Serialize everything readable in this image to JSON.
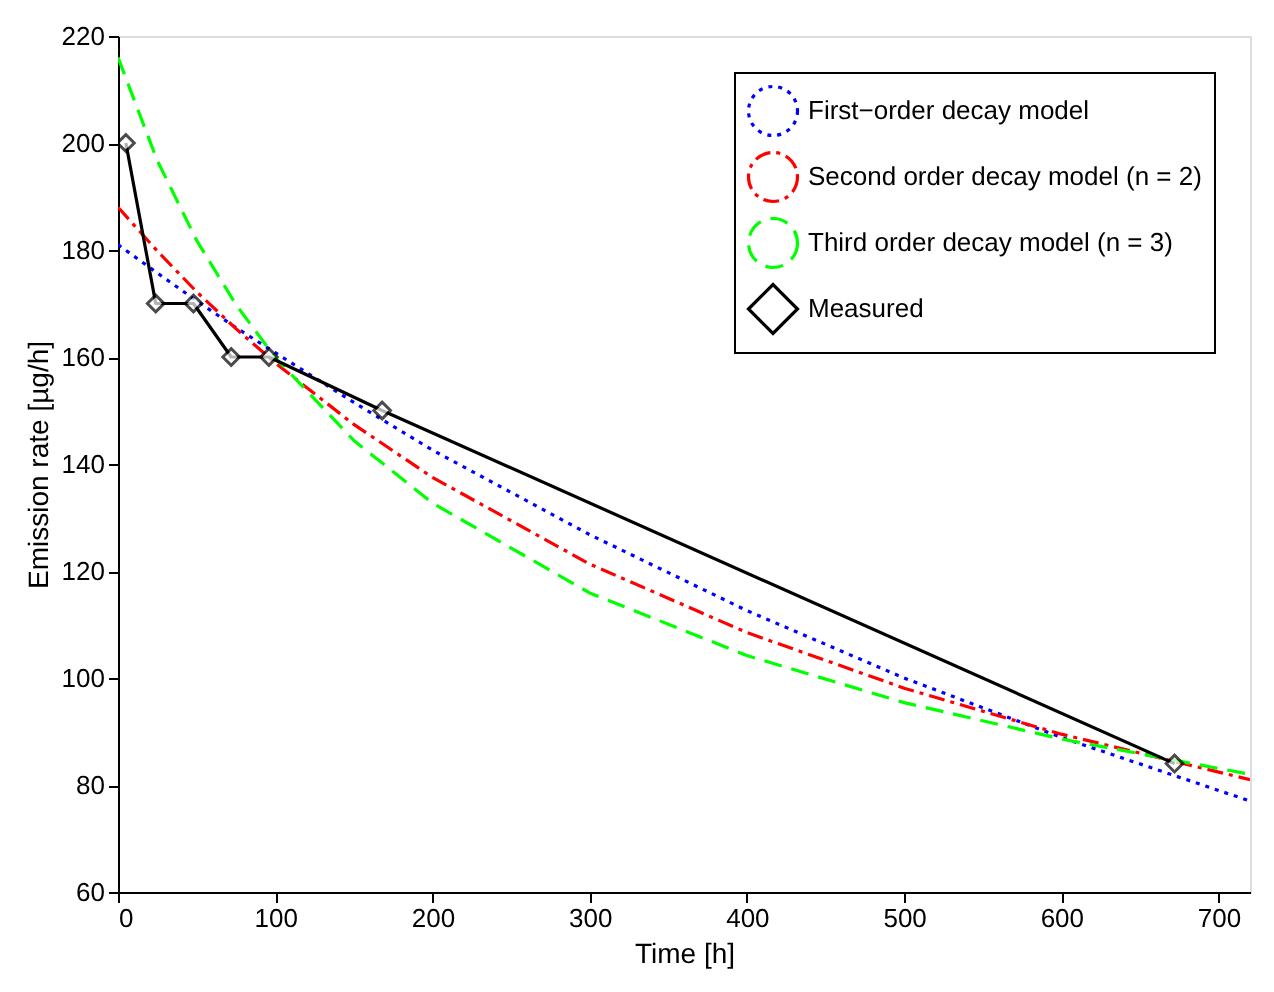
{
  "chart_data": {
    "type": "line",
    "xlabel": "Time [h]",
    "ylabel": "Emission rate [µg/h]",
    "xlim": [
      0,
      720
    ],
    "ylim": [
      60,
      220
    ],
    "xticks": [
      0,
      100,
      200,
      300,
      400,
      500,
      600,
      700
    ],
    "yticks": [
      60,
      80,
      100,
      120,
      140,
      160,
      180,
      200,
      220
    ],
    "grid": false,
    "legend": "top right",
    "series": [
      {
        "name": "First−order decay model",
        "color": "#0000ff",
        "line_style": "dotted",
        "marker": "none",
        "x": [
          0,
          25,
          50,
          75,
          100,
          150,
          200,
          300,
          400,
          500,
          600,
          720
        ],
        "values": [
          181,
          175.7,
          170.5,
          165.5,
          160.8,
          151.5,
          142.6,
          126.8,
          112.6,
          100,
          88.9,
          77
        ]
      },
      {
        "name": "Second order decay model (n = 2)",
        "color": "#ff0000",
        "line_style": "dashdot",
        "marker": "none",
        "x": [
          0,
          25,
          50,
          75,
          100,
          150,
          200,
          300,
          400,
          500,
          600,
          720
        ],
        "values": [
          188,
          179.8,
          172.2,
          165.3,
          158.9,
          147.4,
          137.5,
          121.3,
          108.5,
          98.1,
          89.5,
          81
        ]
      },
      {
        "name": "Third order decay model (n = 3)",
        "color": "#00ff00",
        "line_style": "dashed",
        "marker": "none",
        "x": [
          0,
          25,
          50,
          75,
          100,
          150,
          200,
          300,
          400,
          500,
          600,
          720
        ],
        "values": [
          216,
          196.7,
          181.8,
          169.8,
          159.9,
          144.4,
          132.7,
          115.9,
          104.2,
          95.4,
          88.6,
          82
        ]
      },
      {
        "name": "Measured",
        "color": "#000000",
        "line_style": "solid",
        "marker": "diamond",
        "x": [
          5,
          24,
          48,
          72,
          96,
          168,
          672
        ],
        "values": [
          200,
          170,
          170,
          160,
          160,
          150,
          84
        ]
      }
    ]
  }
}
